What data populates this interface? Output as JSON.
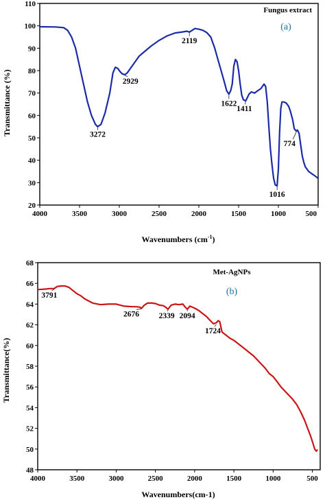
{
  "colors": {
    "panel_a_line": "#1b2aa6",
    "panel_b_line": "#cc1414",
    "panel_b_label": "#1a6e9e"
  },
  "chart_data": [
    {
      "type": "line",
      "title": "",
      "legend": "Fungus extract",
      "legend_placement": "top-right",
      "panel_label": "(a)",
      "xlabel": "Wavenumbers (cm",
      "xlabel_sup": "-1",
      "xlabel_close": ")",
      "ylabel": "Transmittance (%)",
      "xlim": [
        4000,
        500
      ],
      "ylim": [
        20,
        110
      ],
      "xticks": [
        "4000",
        "3500",
        "3000",
        "2500",
        "2000",
        "1500",
        "1000",
        "500"
      ],
      "yticks": [
        "20",
        "30",
        "40",
        "50",
        "60",
        "70",
        "80",
        "90",
        "100",
        "110"
      ],
      "grid": false,
      "series": [
        {
          "x": [
            4000,
            3800,
            3700,
            3650,
            3600,
            3550,
            3500,
            3450,
            3400,
            3350,
            3300,
            3272,
            3230,
            3180,
            3120,
            3080,
            3050,
            3020,
            2990,
            2960,
            2929,
            2900,
            2860,
            2800,
            2750,
            2700,
            2650,
            2600,
            2500,
            2400,
            2300,
            2200,
            2150,
            2119,
            2080,
            2050,
            2000,
            1950,
            1900,
            1850,
            1800,
            1760,
            1720,
            1680,
            1650,
            1622,
            1600,
            1580,
            1560,
            1540,
            1520,
            1500,
            1480,
            1460,
            1440,
            1411,
            1390,
            1370,
            1340,
            1300,
            1260,
            1220,
            1180,
            1160,
            1140,
            1120,
            1100,
            1080,
            1060,
            1040,
            1016,
            1000,
            985,
            970,
            955,
            930,
            900,
            870,
            850,
            820,
            800,
            774,
            760,
            740,
            720,
            700,
            680,
            660,
            640,
            620,
            600,
            580,
            560,
            540,
            520,
            505
          ],
          "values": [
            99.6,
            99.5,
            99.2,
            98,
            95,
            90,
            82,
            74,
            66,
            60,
            56,
            55,
            56,
            61,
            70,
            79,
            81.5,
            81,
            79.5,
            78.5,
            78.2,
            79,
            81,
            84,
            86.5,
            88,
            89.5,
            91,
            93.5,
            95.5,
            96.8,
            97.3,
            97.6,
            97.2,
            98.1,
            98.8,
            98.5,
            98,
            97,
            95,
            90,
            85,
            80,
            75,
            71,
            69.5,
            71,
            74,
            82,
            85,
            84,
            80,
            74,
            69,
            67,
            66.5,
            68,
            69.5,
            70.5,
            70,
            71,
            72,
            74,
            73,
            66,
            55,
            45,
            38,
            32,
            29,
            28.5,
            36,
            52,
            63,
            66,
            66,
            65.5,
            64,
            62,
            58,
            54,
            53,
            53.5,
            52,
            47,
            42,
            39,
            37,
            36,
            35,
            34.5,
            34,
            33.5,
            33,
            32.5,
            32
          ]
        }
      ],
      "annotations": [
        {
          "label": "3272",
          "x": 3272,
          "y": 55
        },
        {
          "label": "2929",
          "x": 2929,
          "y": 78.2
        },
        {
          "label": "2119",
          "x": 2119,
          "y": 97.2
        },
        {
          "label": "1622",
          "x": 1622,
          "y": 69.5
        },
        {
          "label": "1411",
          "x": 1411,
          "y": 66.5
        },
        {
          "label": "1016",
          "x": 1016,
          "y": 28.5
        },
        {
          "label": "774",
          "x": 774,
          "y": 53
        }
      ]
    },
    {
      "type": "line",
      "title": "",
      "legend": "Met-AgNPs",
      "legend_placement": "top-right",
      "panel_label": "(b)",
      "xlabel": "Wavenumbers(cm-1)",
      "ylabel": "Transmittance(%)",
      "xlim": [
        4000,
        400
      ],
      "ylim": [
        48,
        68
      ],
      "xticks": [
        "4000",
        "3500",
        "3000",
        "2500",
        "2000",
        "1500",
        "1000",
        "500"
      ],
      "yticks": [
        "48",
        "50",
        "52",
        "54",
        "56",
        "58",
        "60",
        "62",
        "64",
        "66",
        "68"
      ],
      "grid": false,
      "series": [
        {
          "x": [
            4000,
            3900,
            3850,
            3791,
            3750,
            3700,
            3650,
            3600,
            3550,
            3500,
            3450,
            3400,
            3350,
            3300,
            3200,
            3100,
            3000,
            2900,
            2800,
            2750,
            2700,
            2676,
            2640,
            2600,
            2550,
            2500,
            2450,
            2400,
            2370,
            2339,
            2300,
            2250,
            2200,
            2150,
            2120,
            2094,
            2060,
            2000,
            1950,
            1900,
            1850,
            1800,
            1760,
            1724,
            1700,
            1680,
            1650,
            1600,
            1550,
            1500,
            1450,
            1400,
            1350,
            1300,
            1250,
            1200,
            1150,
            1100,
            1050,
            1000,
            950,
            900,
            850,
            800,
            750,
            700,
            650,
            600,
            560,
            520,
            490,
            470,
            450,
            440,
            430
          ],
          "values": [
            65.4,
            65.45,
            65.5,
            65.5,
            65.7,
            65.75,
            65.75,
            65.6,
            65.3,
            65.0,
            64.8,
            64.5,
            64.3,
            64.1,
            63.95,
            64.0,
            64.0,
            63.8,
            63.75,
            63.75,
            63.7,
            63.6,
            63.9,
            64.1,
            64.1,
            64.05,
            63.9,
            63.85,
            63.7,
            63.5,
            63.9,
            64.0,
            63.95,
            64.0,
            63.7,
            63.5,
            63.8,
            63.6,
            63.4,
            63.1,
            62.8,
            62.4,
            62.1,
            62.2,
            62.4,
            62.3,
            61.3,
            61.0,
            60.7,
            60.5,
            60.2,
            59.9,
            59.6,
            59.3,
            59.0,
            58.6,
            58.2,
            57.8,
            57.3,
            57.0,
            56.5,
            56.0,
            55.6,
            55.2,
            54.8,
            54.3,
            53.6,
            52.8,
            52.0,
            51.2,
            50.5,
            50.0,
            49.8,
            49.9,
            49.9
          ]
        }
      ],
      "annotations": [
        {
          "label": "3791",
          "x": 3791,
          "y": 65.5
        },
        {
          "label": "2676",
          "x": 2676,
          "y": 63.6
        },
        {
          "label": "2339",
          "x": 2339,
          "y": 63.5
        },
        {
          "label": "2094",
          "x": 2094,
          "y": 63.5
        },
        {
          "label": "1724",
          "x": 1724,
          "y": 62.1
        }
      ]
    }
  ]
}
